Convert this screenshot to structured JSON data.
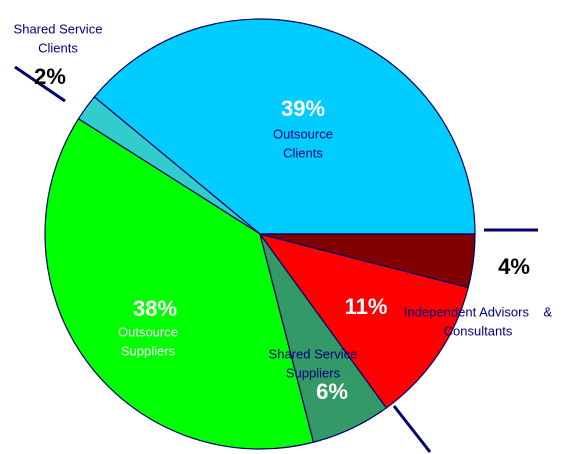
{
  "chart_data": {
    "type": "pie",
    "labels": [
      [
        "Outsource",
        "Clients"
      ],
      [
        "Shared Service",
        "Clients"
      ],
      [
        "Outsource",
        "Suppliers"
      ],
      [
        "Shared Service",
        "Suppliers"
      ],
      [
        "Independent Advisors    &",
        "Consultants"
      ],
      []
    ],
    "values": [
      39,
      2,
      38,
      6,
      11,
      4
    ],
    "value_labels": [
      "39%",
      "2%",
      "38%",
      "6%",
      "11%",
      "4%"
    ],
    "colors": [
      "#00ccff",
      "#33cccc",
      "#00ff00",
      "#339966",
      "#ff0000",
      "#800000"
    ]
  }
}
